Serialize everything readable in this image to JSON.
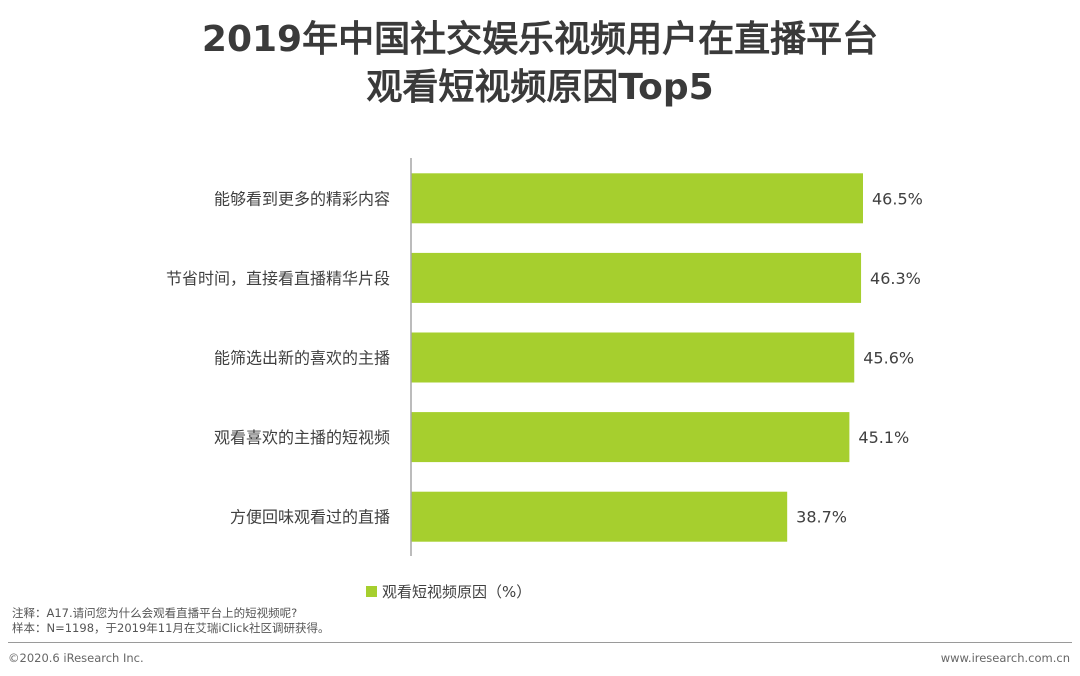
{
  "title_line1": "2019年中国社交娱乐视频用户在直播平台",
  "title_line2": "观看短视频原因Top5",
  "legend_label": "观看短视频原因（%）",
  "notes": {
    "line1": "注释：A17.请问您为什么会观看直播平台上的短视频呢?",
    "line2": "样本：N=1198，于2019年11月在艾瑞iClick社区调研获得。"
  },
  "footer": {
    "copyright": "©2020.6 iResearch Inc.",
    "website": "www.iresearch.com.cn"
  },
  "colors": {
    "bar": "#a6cf2e",
    "axis": "#a6a6a6"
  },
  "chart_data": {
    "type": "bar",
    "orientation": "horizontal",
    "categories": [
      "能够看到更多的精彩内容",
      "节省时间，直接看直播精华片段",
      "能筛选出新的喜欢的主播",
      "观看喜欢的主播的短视频",
      "方便回味观看过的直播"
    ],
    "series": [
      {
        "name": "观看短视频原因（%）",
        "values": [
          46.5,
          46.3,
          45.6,
          45.1,
          38.7
        ]
      }
    ],
    "data_labels": [
      "46.5%",
      "46.3%",
      "45.6%",
      "45.1%",
      "38.7%"
    ],
    "xlim": [
      0,
      50
    ],
    "grid": false,
    "legend_position": "bottom"
  }
}
